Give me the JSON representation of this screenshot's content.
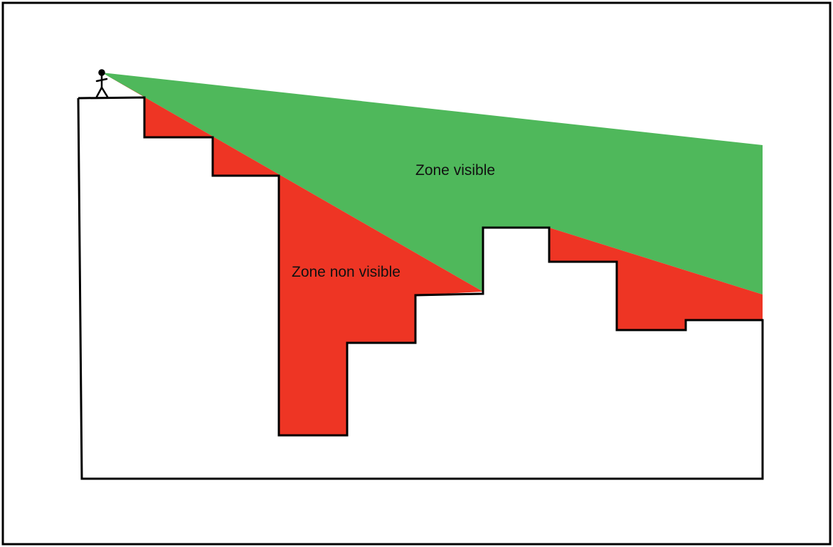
{
  "labels": {
    "visible_zone": "Zone visible",
    "hidden_zone": "Zone non visible"
  },
  "colors": {
    "visible": "#4fb85b",
    "hidden": "#ee3524",
    "outline": "#000000",
    "background": "#ffffff"
  },
  "icons": {
    "observer": "stick-figure-icon"
  }
}
